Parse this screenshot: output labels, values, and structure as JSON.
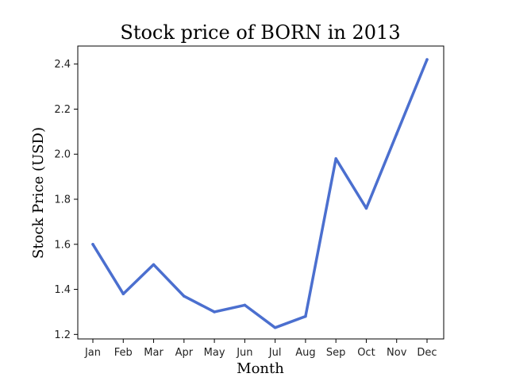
{
  "chart_data": {
    "type": "line",
    "title": "Stock price of BORN in 2013",
    "xlabel": "Month",
    "ylabel": "Stock Price (USD)",
    "categories": [
      "Jan",
      "Feb",
      "Mar",
      "Apr",
      "May",
      "Jun",
      "Jul",
      "Aug",
      "Sep",
      "Oct",
      "Nov",
      "Dec"
    ],
    "series": [
      {
        "values": [
          1.6,
          1.38,
          1.51,
          1.37,
          1.3,
          1.33,
          1.23,
          1.28,
          1.98,
          1.76,
          2.09,
          2.42
        ]
      }
    ],
    "ylim": [
      1.18,
      2.48
    ],
    "yticks": [
      "1.2",
      "1.4",
      "1.6",
      "1.8",
      "2.0",
      "2.2",
      "2.4"
    ],
    "grid": false,
    "colors": {
      "line": "#4b6fcf"
    }
  }
}
